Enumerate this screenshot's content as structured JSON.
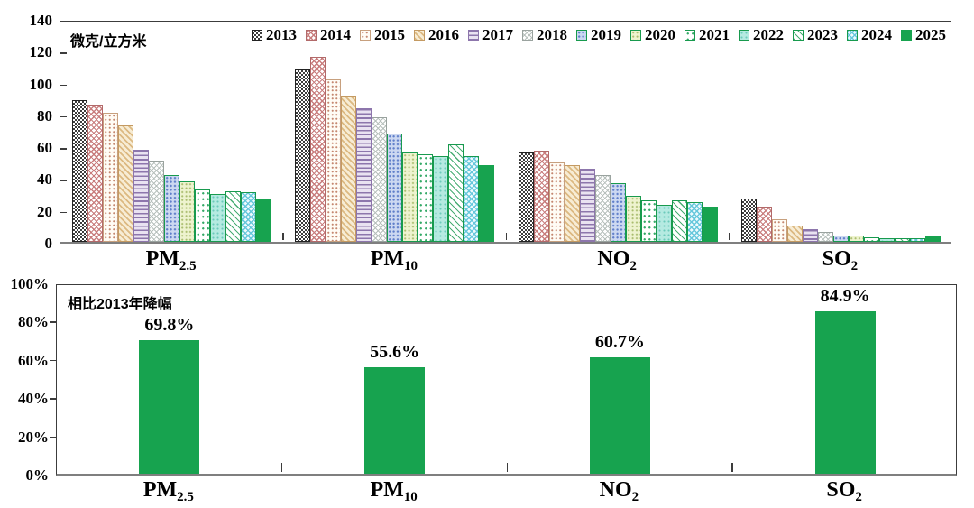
{
  "accent_green": "#17A34F",
  "chart_data": [
    {
      "type": "bar",
      "title": "",
      "unit_label": "微克/立方米",
      "ylabel": "微克/立方米",
      "xlabel": "",
      "ylim": [
        0,
        140
      ],
      "y_tick_step": 20,
      "y_tick_labels": [
        "140",
        "120",
        "100",
        "80",
        "60",
        "40",
        "20",
        "0"
      ],
      "grid": false,
      "legend_position": "top",
      "categories": [
        "PM2.5",
        "PM10",
        "NO2",
        "SO2"
      ],
      "categories_display": [
        {
          "main": "PM",
          "sub": "2.5"
        },
        {
          "main": "PM",
          "sub": "10"
        },
        {
          "main": "NO",
          "sub": "2"
        },
        {
          "main": "SO",
          "sub": "2"
        }
      ],
      "series": [
        {
          "name": "2013",
          "pattern": "check-dark",
          "values": [
            89,
            108,
            56,
            27
          ]
        },
        {
          "name": "2014",
          "pattern": "cross-red",
          "values": [
            86,
            116,
            57,
            22
          ]
        },
        {
          "name": "2015",
          "pattern": "dots-tan",
          "values": [
            81,
            102,
            50,
            14
          ]
        },
        {
          "name": "2016",
          "pattern": "hatch-tan",
          "values": [
            73,
            92,
            48,
            10
          ]
        },
        {
          "name": "2017",
          "pattern": "lines-purple",
          "values": [
            58,
            84,
            46,
            8
          ]
        },
        {
          "name": "2018",
          "pattern": "cross-gray",
          "values": [
            51,
            78,
            42,
            6
          ]
        },
        {
          "name": "2019",
          "pattern": "dots-blue",
          "values": [
            42,
            68,
            37,
            4
          ]
        },
        {
          "name": "2020",
          "pattern": "dots-olive",
          "values": [
            38,
            56,
            29,
            4
          ]
        },
        {
          "name": "2021",
          "pattern": "dash-green",
          "values": [
            33,
            55,
            26,
            3
          ]
        },
        {
          "name": "2022",
          "pattern": "dots-cyan",
          "values": [
            30,
            54,
            23,
            2
          ]
        },
        {
          "name": "2023",
          "pattern": "hatch-green",
          "values": [
            32,
            61,
            26,
            2
          ]
        },
        {
          "name": "2024",
          "pattern": "cross-cyan",
          "values": [
            31,
            54,
            25,
            2
          ]
        },
        {
          "name": "2025",
          "pattern": "solid-green",
          "values": [
            27,
            48,
            22,
            4
          ]
        }
      ]
    },
    {
      "type": "bar",
      "title": "相比2013年降幅",
      "ylim": [
        0,
        100
      ],
      "y_tick_step": 20,
      "y_tick_labels": [
        "100%",
        "80%",
        "60%",
        "40%",
        "20%",
        "0%"
      ],
      "grid": false,
      "bar_color": "#17A34F",
      "categories": [
        "PM2.5",
        "PM10",
        "NO2",
        "SO2"
      ],
      "categories_display": [
        {
          "main": "PM",
          "sub": "2.5"
        },
        {
          "main": "PM",
          "sub": "10"
        },
        {
          "main": "NO",
          "sub": "2"
        },
        {
          "main": "SO",
          "sub": "2"
        }
      ],
      "values": [
        69.8,
        55.6,
        60.7,
        84.9
      ],
      "data_labels": [
        "69.8%",
        "55.6%",
        "60.7%",
        "84.9%"
      ]
    }
  ]
}
